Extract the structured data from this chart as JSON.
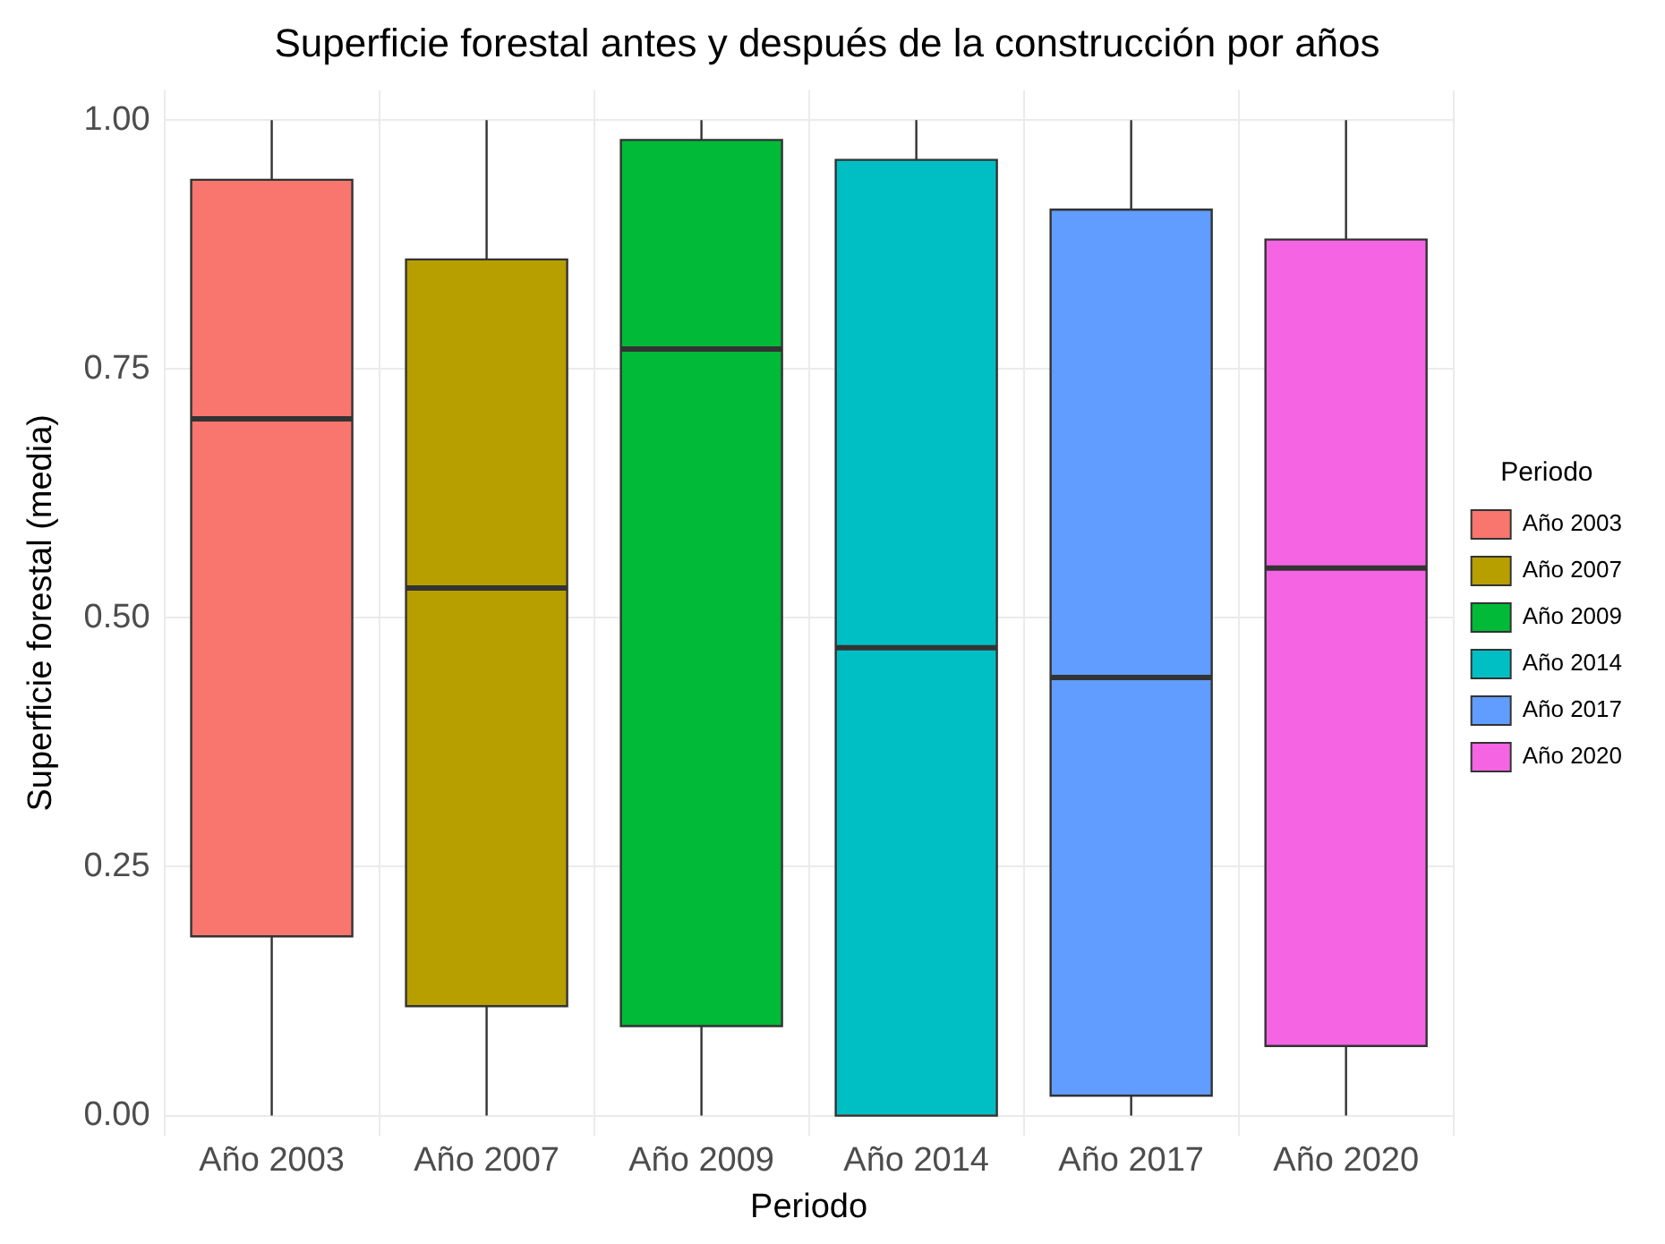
{
  "chart_data": {
    "type": "box",
    "title": "Superficie forestal antes y después de la construcción por años",
    "xlabel": "Periodo",
    "ylabel": "Superficie forestal (media)",
    "legend_title": "Periodo",
    "categories": [
      "Año 2003",
      "Año 2007",
      "Año 2009",
      "Año 2014",
      "Año 2017",
      "Año 2020"
    ],
    "series": [
      {
        "name": "Año 2003",
        "color": "#f8766d",
        "boxes": [
          {
            "low": 0,
            "q1": 0.18,
            "median": 0.7,
            "q3": 0.94,
            "high": 1
          },
          null,
          null,
          null,
          null,
          null
        ]
      },
      {
        "name": "Año 2007",
        "color": "#b79f00",
        "boxes": [
          null,
          {
            "low": 0,
            "q1": 0.11,
            "median": 0.53,
            "q3": 0.86,
            "high": 1
          },
          null,
          null,
          null,
          null
        ]
      },
      {
        "name": "Año 2009",
        "color": "#00ba38",
        "boxes": [
          null,
          null,
          {
            "low": 0,
            "q1": 0.09,
            "median": 0.77,
            "q3": 0.98,
            "high": 1
          },
          null,
          null,
          null
        ]
      },
      {
        "name": "Año 2014",
        "color": "#00bfc4",
        "boxes": [
          null,
          null,
          null,
          {
            "low": 0,
            "q1": 0.0,
            "median": 0.47,
            "q3": 0.96,
            "high": 1
          },
          null,
          null
        ]
      },
      {
        "name": "Año 2017",
        "color": "#619cff",
        "boxes": [
          null,
          null,
          null,
          null,
          {
            "low": 0,
            "q1": 0.02,
            "median": 0.44,
            "q3": 0.91,
            "high": 1
          },
          null
        ]
      },
      {
        "name": "Año 2020",
        "color": "#f564e3",
        "boxes": [
          null,
          null,
          null,
          null,
          null,
          {
            "low": 0,
            "q1": 0.07,
            "median": 0.55,
            "q3": 0.88,
            "high": 1
          }
        ]
      }
    ],
    "ylim": [
      -0.02,
      1.03
    ],
    "yticks": [
      {
        "value": 0,
        "label": "0.00"
      },
      {
        "value": 0.25,
        "label": "0.25"
      },
      {
        "value": 0.5,
        "label": "0.50"
      },
      {
        "value": 0.75,
        "label": "0.75"
      },
      {
        "value": 1,
        "label": "1.00"
      }
    ],
    "grid": true,
    "legend": "right"
  }
}
